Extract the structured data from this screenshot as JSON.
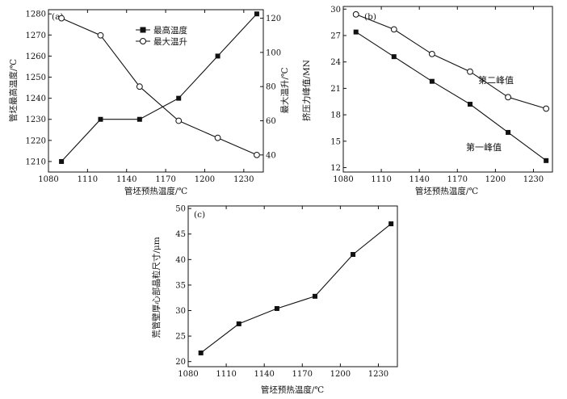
{
  "chart_data": [
    {
      "panel": "(a)",
      "type": "line",
      "xlabel": "管坯预热温度/℃",
      "ylabel_left": "管坯最高温度/℃",
      "ylabel_right": "最大温升/℃",
      "xlim": [
        1080,
        1245
      ],
      "xticks": [
        1080,
        1110,
        1140,
        1170,
        1200,
        1230
      ],
      "ylim_left": [
        1205,
        1282
      ],
      "yticks_left": [
        1210,
        1220,
        1230,
        1240,
        1250,
        1260,
        1270,
        1280
      ],
      "ylim_right": [
        30,
        125
      ],
      "yticks_right": [
        40,
        60,
        80,
        100,
        120
      ],
      "legend_position": "top-center",
      "grid": false,
      "series": [
        {
          "name": "最高温度",
          "axis": "left",
          "marker": "filled-square",
          "x": [
            1090,
            1120,
            1150,
            1180,
            1210,
            1240
          ],
          "y": [
            1210,
            1230,
            1230,
            1240,
            1260,
            1280
          ]
        },
        {
          "name": "最大温升",
          "axis": "right",
          "marker": "open-circle",
          "x": [
            1090,
            1120,
            1150,
            1180,
            1210,
            1240
          ],
          "y": [
            120,
            110,
            80,
            60,
            50,
            40
          ]
        }
      ]
    },
    {
      "panel": "(b)",
      "type": "line",
      "xlabel": "管坯预热温度/℃",
      "ylabel": "挤压力峰值/MN",
      "xlim": [
        1080,
        1245
      ],
      "xticks": [
        1080,
        1110,
        1140,
        1170,
        1200,
        1230
      ],
      "ylim": [
        11.5,
        30.3
      ],
      "yticks": [
        12,
        15,
        18,
        21,
        24,
        27,
        30
      ],
      "grid": false,
      "series": [
        {
          "name": "第二峰值",
          "marker": "open-circle",
          "x": [
            1090,
            1120,
            1150,
            1180,
            1210,
            1240
          ],
          "y": [
            29.4,
            27.7,
            24.9,
            22.9,
            20.0,
            18.7
          ]
        },
        {
          "name": "第一峰值",
          "marker": "filled-square",
          "x": [
            1090,
            1120,
            1150,
            1180,
            1210,
            1240
          ],
          "y": [
            27.4,
            24.6,
            21.8,
            19.2,
            16.0,
            12.8
          ]
        }
      ]
    },
    {
      "panel": "(c)",
      "type": "line",
      "xlabel": "管坯预热温度/℃",
      "ylabel": "荒管壁厚心部晶粒尺寸/μm",
      "xlim": [
        1080,
        1245
      ],
      "xticks": [
        1080,
        1110,
        1140,
        1170,
        1200,
        1230
      ],
      "ylim": [
        19,
        50.5
      ],
      "yticks": [
        20,
        25,
        30,
        35,
        40,
        45,
        50
      ],
      "grid": false,
      "series": [
        {
          "marker": "filled-square",
          "x": [
            1090,
            1120,
            1150,
            1180,
            1210,
            1240
          ],
          "y": [
            21.7,
            27.4,
            30.4,
            32.8,
            41.0,
            47.0
          ]
        }
      ]
    }
  ]
}
